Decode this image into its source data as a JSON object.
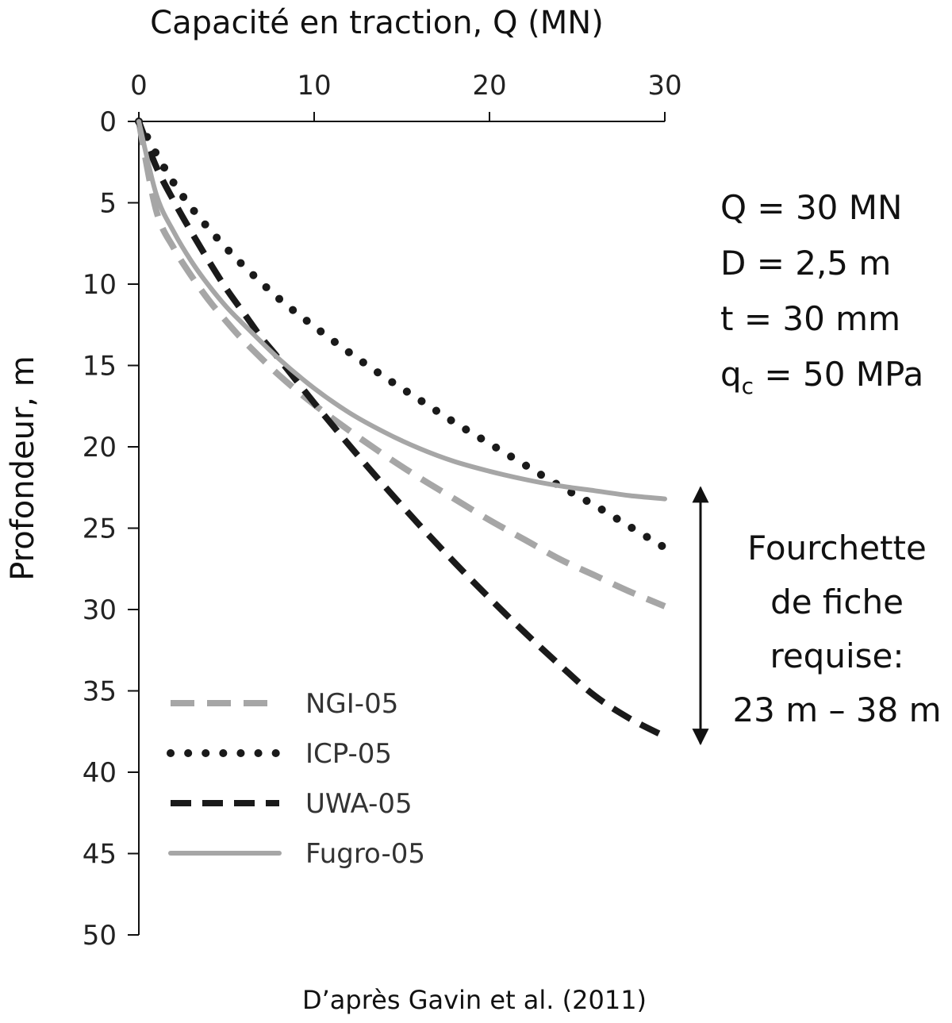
{
  "chart_data": {
    "type": "line",
    "title": "",
    "xlabel": "Capacité en traction, Q (MN)",
    "ylabel": "Profondeur, m",
    "xlim": [
      0,
      30
    ],
    "ylim": [
      0,
      50
    ],
    "y_inverted": true,
    "x_axis_position": "top",
    "x_ticks": [
      0,
      10,
      20,
      30
    ],
    "y_ticks": [
      0,
      5,
      10,
      15,
      20,
      25,
      30,
      35,
      40,
      45,
      50
    ],
    "grid": false,
    "legend_position": "bottom-left",
    "series": [
      {
        "name": "NGI-05",
        "style": "dashed",
        "color": "#a6a6a6",
        "x": [
          0,
          1,
          2,
          3,
          4,
          5,
          6,
          8,
          10,
          12,
          14,
          16,
          18,
          20,
          22,
          24,
          26,
          28,
          30
        ],
        "y": [
          0,
          5.5,
          7.8,
          9.5,
          11.0,
          12.3,
          13.5,
          15.6,
          17.4,
          19.0,
          20.5,
          21.9,
          23.2,
          24.5,
          25.7,
          26.9,
          27.9,
          28.9,
          29.8
        ]
      },
      {
        "name": "ICP-05",
        "style": "dotted",
        "color": "#1a1a1a",
        "x": [
          0,
          1,
          2,
          3,
          4,
          5,
          6,
          8,
          10,
          12,
          14,
          16,
          18,
          20,
          22,
          24,
          26,
          28,
          30
        ],
        "y": [
          0,
          2.0,
          3.8,
          5.3,
          6.6,
          7.8,
          8.9,
          10.9,
          12.6,
          14.2,
          15.7,
          17.1,
          18.5,
          19.8,
          21.1,
          22.4,
          23.6,
          24.9,
          26.2
        ]
      },
      {
        "name": "UWA-05",
        "style": "long-dashed",
        "color": "#1a1a1a",
        "x": [
          0,
          1,
          2,
          3,
          4,
          5,
          6,
          7,
          8,
          10,
          12,
          14,
          16,
          18,
          20,
          22,
          24,
          26,
          28,
          30
        ],
        "y": [
          0,
          2.8,
          4.9,
          6.8,
          8.6,
          10.3,
          11.8,
          13.3,
          14.6,
          17.3,
          19.9,
          22.4,
          24.8,
          27.1,
          29.3,
          31.4,
          33.4,
          35.3,
          36.7,
          37.8
        ]
      },
      {
        "name": "Fugro-05",
        "style": "solid",
        "color": "#a6a6a6",
        "x": [
          0,
          1,
          2,
          3,
          4,
          5,
          6,
          8,
          10,
          12,
          14,
          16,
          18,
          20,
          22,
          24,
          26,
          28,
          30
        ],
        "y": [
          0,
          4.5,
          6.8,
          8.6,
          10.1,
          11.4,
          12.5,
          14.6,
          16.4,
          17.9,
          19.1,
          20.1,
          20.9,
          21.5,
          22.0,
          22.4,
          22.7,
          23.0,
          23.2
        ]
      }
    ],
    "annotations": {
      "parameters": [
        "Q = 30 MN",
        "D = 2,5 m",
        "t = 30 mm"
      ],
      "qc_symbol": "q",
      "qc_subscript": "c",
      "qc_value": " = 50 MPa",
      "range_label_lines": [
        "Fourchette",
        "de fiche",
        "requise:",
        "23 m – 38 m"
      ],
      "range_depths": [
        23,
        38
      ],
      "source": "D’après Gavin et al. (2011)"
    }
  }
}
